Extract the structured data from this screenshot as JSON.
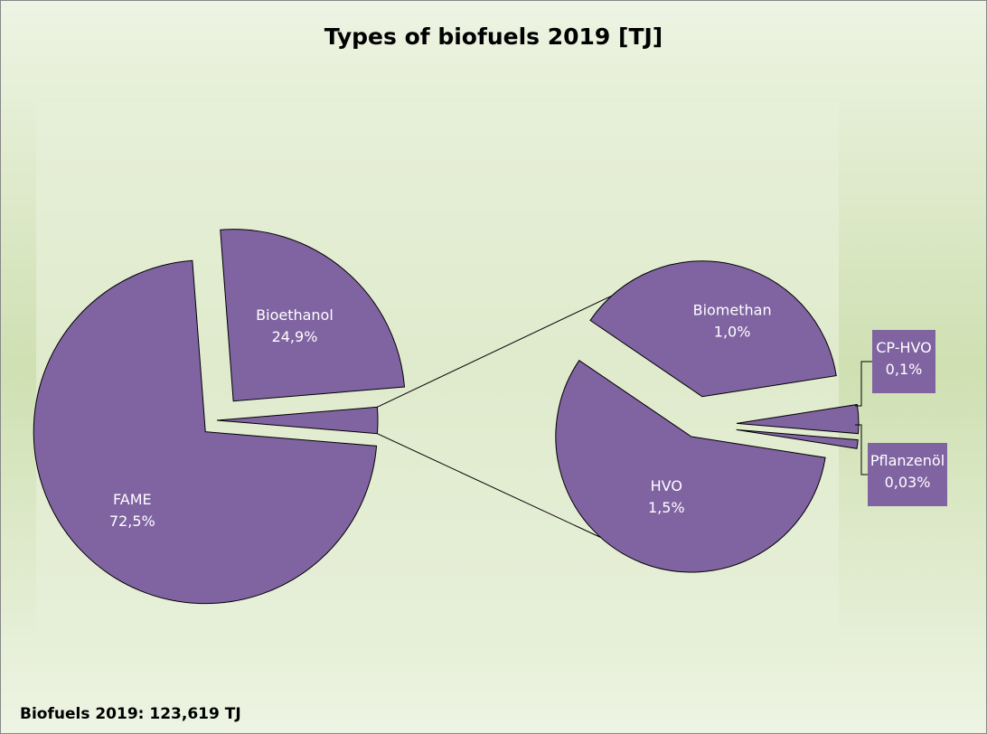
{
  "chart_data": {
    "type": "pie",
    "title": "Types of biofuels 2019 [TJ]",
    "categories": [
      "FAME",
      "Bioethanol",
      "Biomethan",
      "HVO",
      "CP-HVO",
      "Pflanzenöl"
    ],
    "values": [
      72.5,
      24.9,
      1.0,
      1.5,
      0.1,
      0.03
    ],
    "value_labels": [
      "72,5%",
      "24,9%",
      "1,0%",
      "1,5%",
      "0,1%",
      "0,03%"
    ],
    "color": "#8064a2",
    "note": "Biofuels 2019: 123,619 TJ"
  }
}
